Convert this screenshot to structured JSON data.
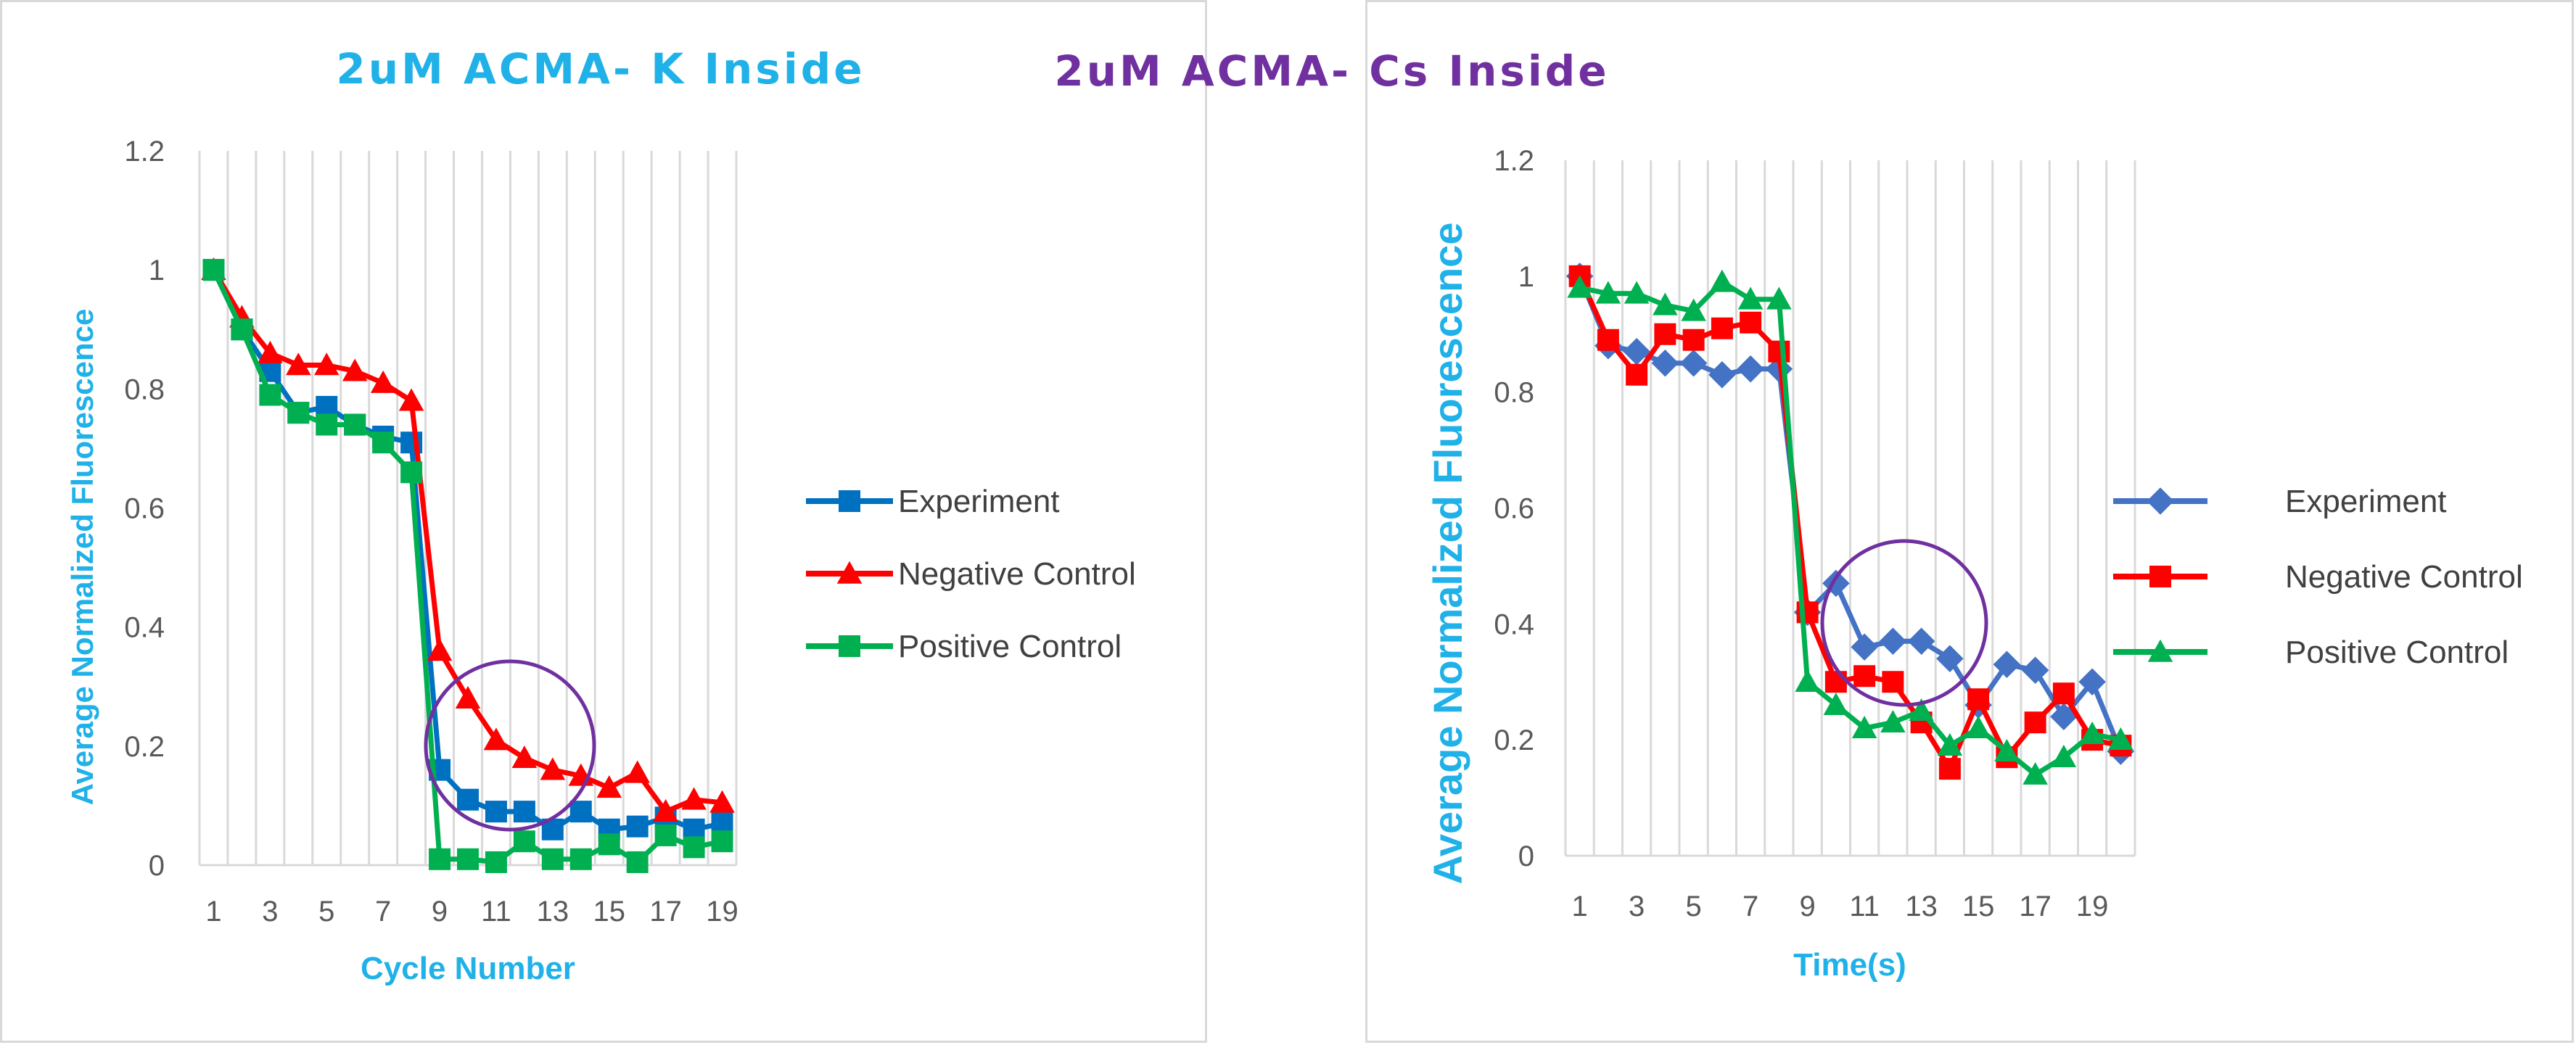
{
  "chart_data": [
    {
      "type": "line",
      "title": "2uM ACMA- K Inside",
      "title_color": "#1fb1e8",
      "xlabel": "Cycle Number",
      "ylabel": "Average Normalized Fluorescence",
      "x": [
        1,
        2,
        3,
        4,
        5,
        6,
        7,
        8,
        9,
        10,
        11,
        12,
        13,
        14,
        15,
        16,
        17,
        18,
        19
      ],
      "x_tick_labels": [
        "1",
        "3",
        "5",
        "7",
        "9",
        "11",
        "13",
        "15",
        "17",
        "19"
      ],
      "y_tick_labels": [
        "0",
        "0.2",
        "0.4",
        "0.6",
        "0.8",
        "1",
        "1.2"
      ],
      "ylim": [
        0,
        1.2
      ],
      "grid": "vertical",
      "legend_position": "right",
      "annotation": "circle",
      "series": [
        {
          "name": "Experiment",
          "color": "#0070c0",
          "marker": "square",
          "values": [
            1,
            0.9,
            0.83,
            0.76,
            0.77,
            0.74,
            0.72,
            0.71,
            0.16,
            0.11,
            0.09,
            0.09,
            0.06,
            0.09,
            0.06,
            0.065,
            0.08,
            0.06,
            0.07
          ]
        },
        {
          "name": "Negative Control",
          "color": "#ff0000",
          "marker": "triangle",
          "values": [
            1,
            0.92,
            0.86,
            0.84,
            0.84,
            0.83,
            0.81,
            0.78,
            0.36,
            0.28,
            0.21,
            0.18,
            0.16,
            0.15,
            0.13,
            0.155,
            0.09,
            0.11,
            0.105
          ]
        },
        {
          "name": "Positive Control",
          "color": "#00b050",
          "marker": "square",
          "values": [
            1,
            0.9,
            0.79,
            0.76,
            0.74,
            0.74,
            0.71,
            0.66,
            0.01,
            0.01,
            0.005,
            0.04,
            0.01,
            0.01,
            0.035,
            0.005,
            0.05,
            0.03,
            0.04
          ]
        }
      ]
    },
    {
      "type": "line",
      "title": "2uM ACMA- Cs Inside",
      "title_color": "#7030a0",
      "xlabel": "Time(s)",
      "ylabel": "Average Normalized Fluorescence",
      "x": [
        1,
        2,
        3,
        4,
        5,
        6,
        7,
        8,
        9,
        10,
        11,
        12,
        13,
        14,
        15,
        16,
        17,
        18,
        19,
        20
      ],
      "x_tick_labels": [
        "1",
        "3",
        "5",
        "7",
        "9",
        "11",
        "13",
        "15",
        "17",
        "19"
      ],
      "y_tick_labels": [
        "0",
        "0.2",
        "0.4",
        "0.6",
        "0.8",
        "1",
        "1.2"
      ],
      "ylim": [
        0,
        1.2
      ],
      "grid": "vertical",
      "legend_position": "right",
      "annotation": "circle",
      "series": [
        {
          "name": "Experiment",
          "color": "#4472c4",
          "marker": "diamond",
          "values": [
            1,
            0.88,
            0.87,
            0.85,
            0.85,
            0.83,
            0.84,
            0.84,
            0.42,
            0.47,
            0.36,
            0.37,
            0.37,
            0.34,
            0.26,
            0.33,
            0.32,
            0.24,
            0.3,
            0.18
          ]
        },
        {
          "name": "Negative Control",
          "color": "#ff0000",
          "marker": "square",
          "values": [
            1,
            0.89,
            0.83,
            0.9,
            0.89,
            0.91,
            0.92,
            0.87,
            0.42,
            0.3,
            0.31,
            0.3,
            0.23,
            0.15,
            0.27,
            0.17,
            0.23,
            0.28,
            0.2,
            0.19
          ]
        },
        {
          "name": "Positive Control",
          "color": "#00b050",
          "marker": "triangle",
          "values": [
            0.98,
            0.97,
            0.97,
            0.95,
            0.94,
            0.99,
            0.96,
            0.96,
            0.3,
            0.26,
            0.22,
            0.23,
            0.25,
            0.19,
            0.22,
            0.18,
            0.14,
            0.17,
            0.21,
            0.2
          ]
        }
      ]
    }
  ]
}
